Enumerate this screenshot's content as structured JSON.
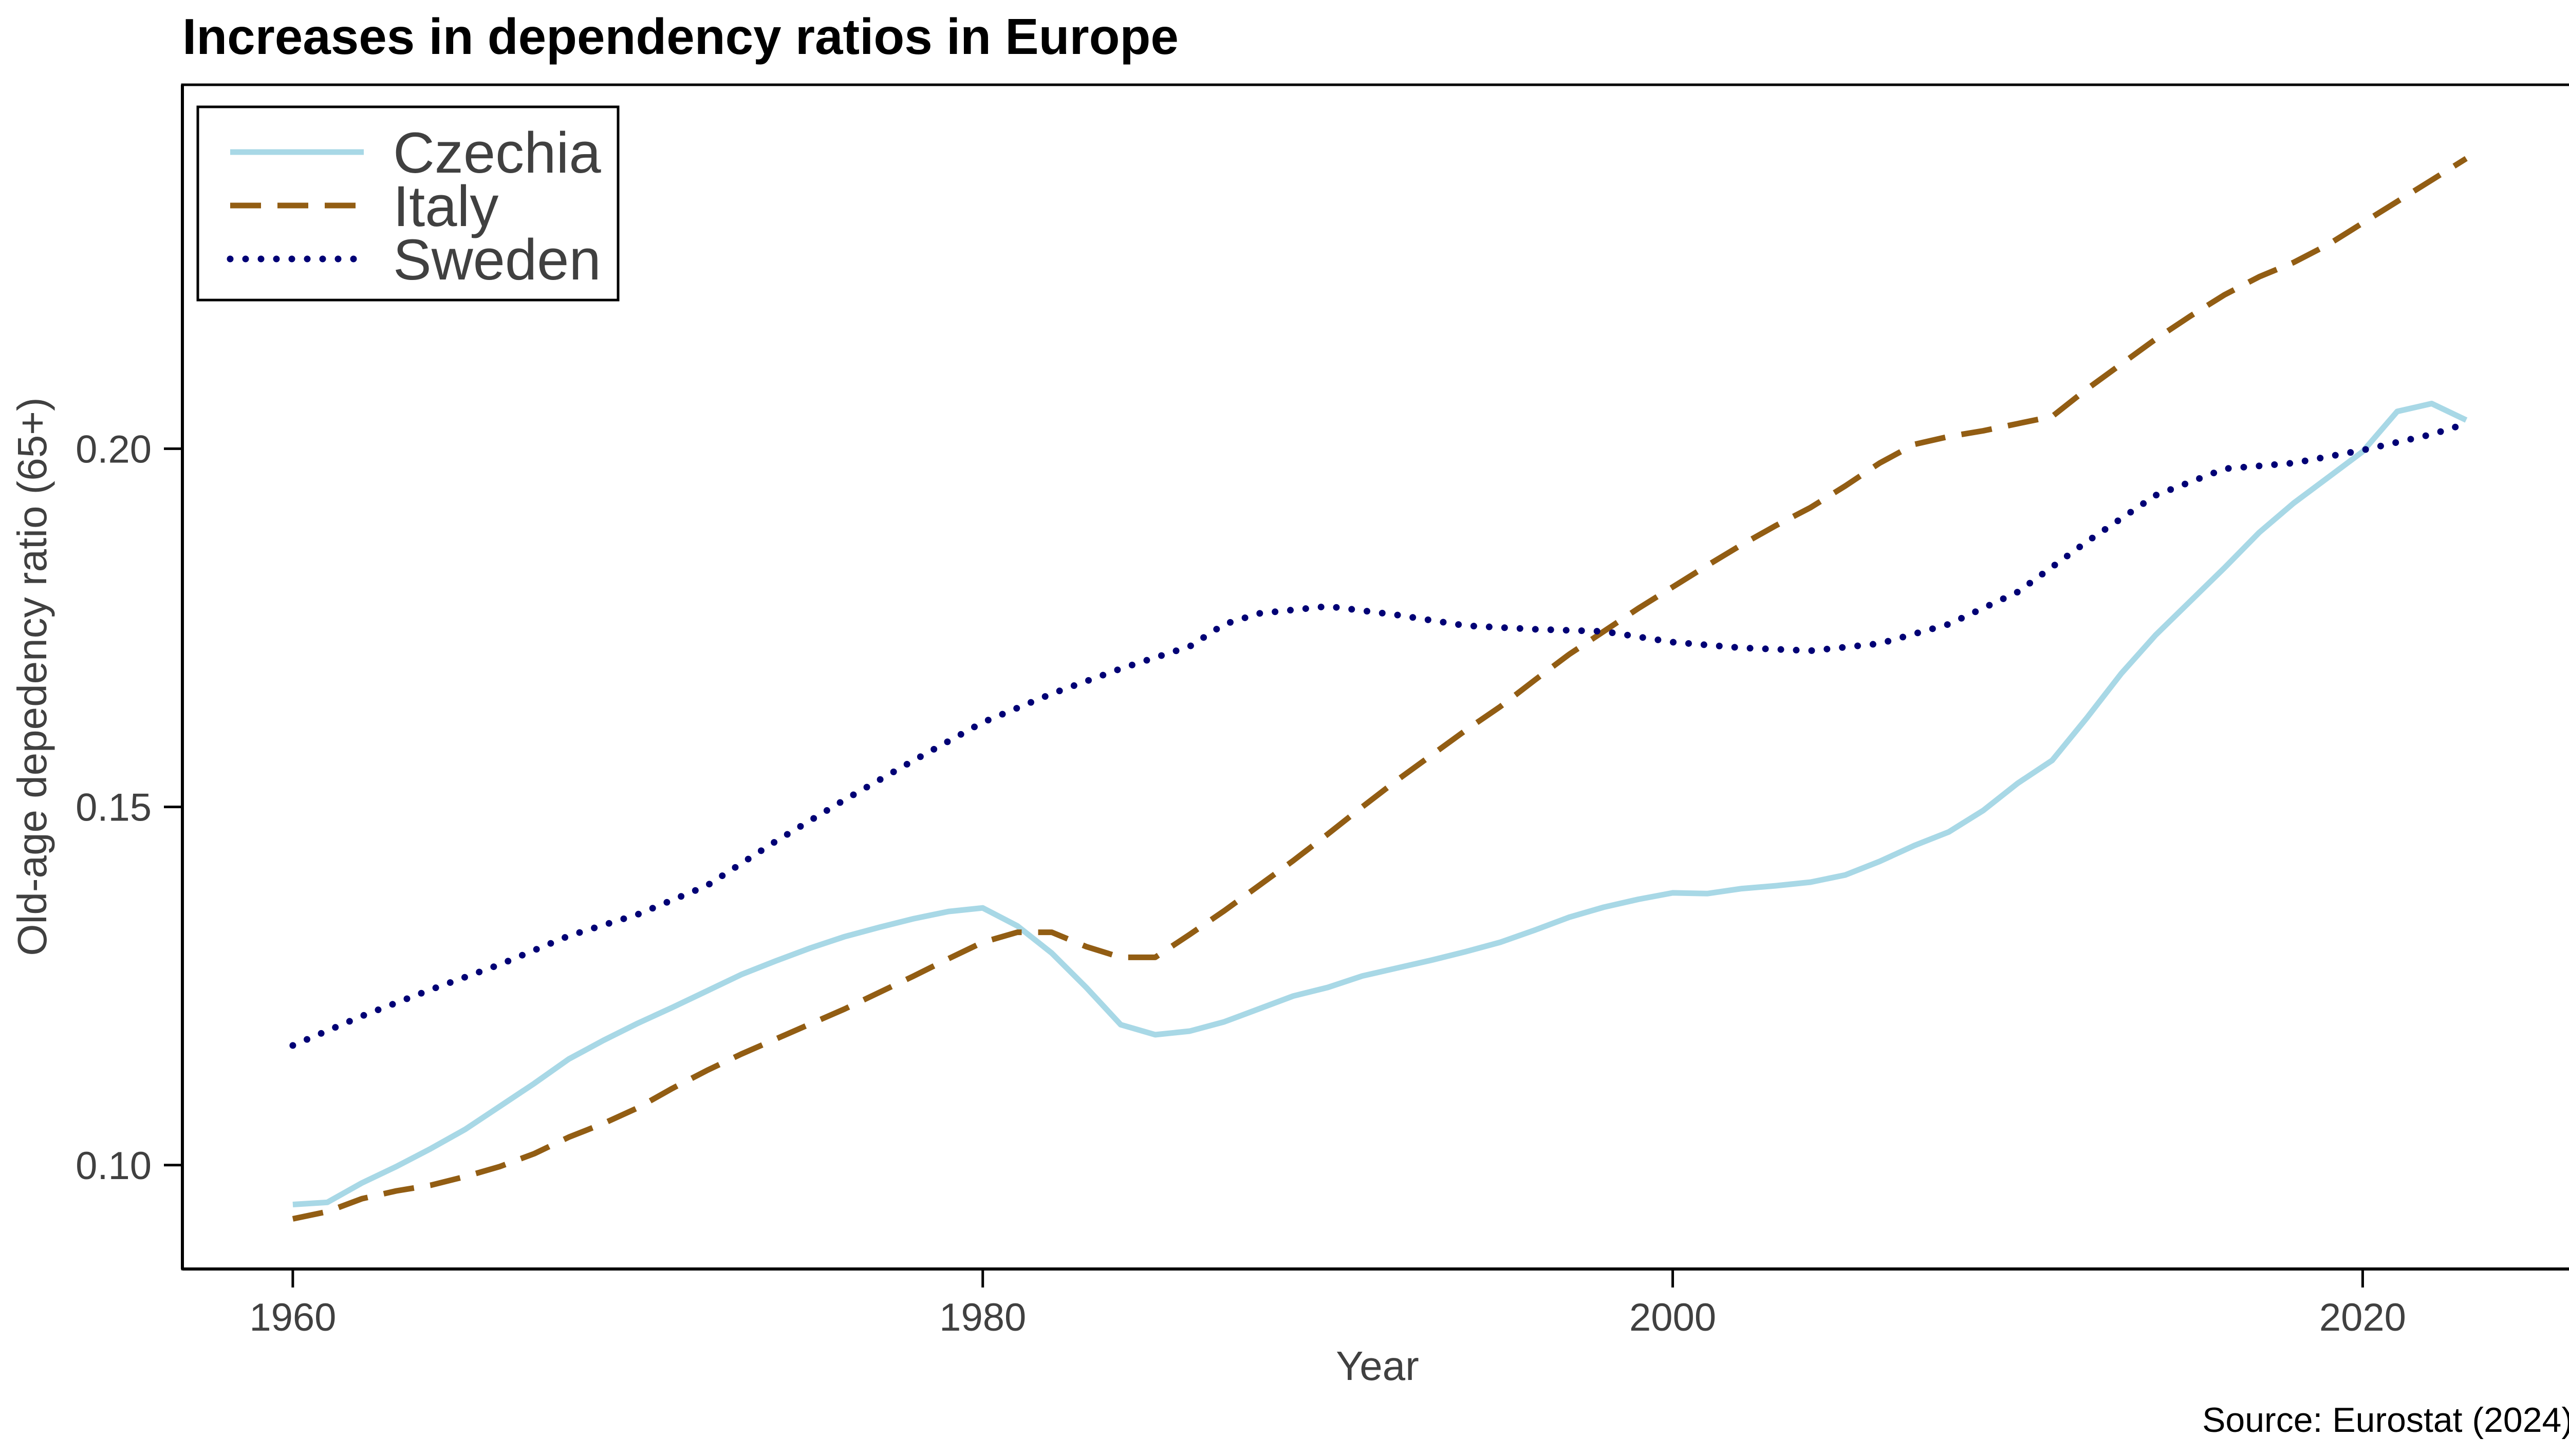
{
  "chart_data": {
    "type": "line",
    "title": "Increases in dependency ratios in Europe",
    "xlabel": "Year",
    "ylabel": "Old-age depedency ratio (65+)",
    "source": "Source: Eurostat (2024)",
    "xlim": [
      1956.8,
      2026.1
    ],
    "ylim": [
      0.0855,
      0.2508
    ],
    "x_ticks": [
      1960,
      1980,
      2000,
      2020
    ],
    "y_ticks": [
      0.1,
      0.15,
      0.2
    ],
    "x_tick_labels": [
      "1960",
      "1980",
      "2000",
      "2020"
    ],
    "y_tick_labels": [
      "0.10",
      "0.15",
      "0.20"
    ],
    "grid": false,
    "legend_position": "top-left",
    "series": [
      {
        "name": "Czechia",
        "color": "#a8d8e6",
        "style": "solid",
        "points": [
          [
            1960,
            0.0945
          ],
          [
            1961,
            0.0948
          ],
          [
            1962,
            0.0975
          ],
          [
            1963,
            0.0998
          ],
          [
            1964,
            0.1023
          ],
          [
            1965,
            0.105
          ],
          [
            1966,
            0.1082
          ],
          [
            1967,
            0.1114
          ],
          [
            1968,
            0.1148
          ],
          [
            1969,
            0.1174
          ],
          [
            1970,
            0.1198
          ],
          [
            1971,
            0.122
          ],
          [
            1972,
            0.1243
          ],
          [
            1973,
            0.1266
          ],
          [
            1974,
            0.1285
          ],
          [
            1975,
            0.1303
          ],
          [
            1976,
            0.1319
          ],
          [
            1977,
            0.1332
          ],
          [
            1978,
            0.1344
          ],
          [
            1979,
            0.1354
          ],
          [
            1980,
            0.1359
          ],
          [
            1981,
            0.1334
          ],
          [
            1982,
            0.1296
          ],
          [
            1983,
            0.1248
          ],
          [
            1984,
            0.1196
          ],
          [
            1985,
            0.1182
          ],
          [
            1986,
            0.1187
          ],
          [
            1987,
            0.12
          ],
          [
            1988,
            0.1218
          ],
          [
            1989,
            0.1236
          ],
          [
            1990,
            0.1248
          ],
          [
            1991,
            0.1264
          ],
          [
            1992,
            0.1275
          ],
          [
            1993,
            0.1286
          ],
          [
            1994,
            0.1298
          ],
          [
            1995,
            0.1311
          ],
          [
            1996,
            0.1328
          ],
          [
            1997,
            0.1346
          ],
          [
            1998,
            0.136
          ],
          [
            1999,
            0.1371
          ],
          [
            2000,
            0.138
          ],
          [
            2001,
            0.1379
          ],
          [
            2002,
            0.1386
          ],
          [
            2003,
            0.139
          ],
          [
            2004,
            0.1395
          ],
          [
            2005,
            0.1405
          ],
          [
            2006,
            0.1424
          ],
          [
            2007,
            0.1446
          ],
          [
            2008,
            0.1465
          ],
          [
            2009,
            0.1495
          ],
          [
            2010,
            0.1533
          ],
          [
            2011,
            0.1565
          ],
          [
            2012,
            0.1624
          ],
          [
            2013,
            0.1686
          ],
          [
            2014,
            0.174
          ],
          [
            2015,
            0.1787
          ],
          [
            2016,
            0.1834
          ],
          [
            2017,
            0.1883
          ],
          [
            2018,
            0.1924
          ],
          [
            2019,
            0.196
          ],
          [
            2020,
            0.1996
          ],
          [
            2021,
            0.2052
          ],
          [
            2022,
            0.2063
          ],
          [
            2023,
            0.204
          ]
        ]
      },
      {
        "name": "Italy",
        "color": "#925d13",
        "style": "dashed",
        "points": [
          [
            1960,
            0.0925
          ],
          [
            1961,
            0.0935
          ],
          [
            1962,
            0.0953
          ],
          [
            1963,
            0.0964
          ],
          [
            1964,
            0.0972
          ],
          [
            1965,
            0.0984
          ],
          [
            1966,
            0.0998
          ],
          [
            1967,
            0.1016
          ],
          [
            1968,
            0.1039
          ],
          [
            1969,
            0.1058
          ],
          [
            1970,
            0.108
          ],
          [
            1971,
            0.1107
          ],
          [
            1972,
            0.1132
          ],
          [
            1973,
            0.1155
          ],
          [
            1974,
            0.1176
          ],
          [
            1975,
            0.1197
          ],
          [
            1976,
            0.1218
          ],
          [
            1977,
            0.1241
          ],
          [
            1978,
            0.1264
          ],
          [
            1979,
            0.1288
          ],
          [
            1980,
            0.1311
          ],
          [
            1981,
            0.1325
          ],
          [
            1982,
            0.1325
          ],
          [
            1983,
            0.1305
          ],
          [
            1984,
            0.129
          ],
          [
            1985,
            0.129
          ],
          [
            1986,
            0.1322
          ],
          [
            1987,
            0.1355
          ],
          [
            1988,
            0.139
          ],
          [
            1989,
            0.1425
          ],
          [
            1990,
            0.1462
          ],
          [
            1991,
            0.15
          ],
          [
            1992,
            0.1537
          ],
          [
            1993,
            0.1572
          ],
          [
            1994,
            0.1607
          ],
          [
            1995,
            0.164
          ],
          [
            1996,
            0.1677
          ],
          [
            1997,
            0.1713
          ],
          [
            1998,
            0.1745
          ],
          [
            1999,
            0.1777
          ],
          [
            2000,
            0.1807
          ],
          [
            2001,
            0.1837
          ],
          [
            2002,
            0.1866
          ],
          [
            2003,
            0.1893
          ],
          [
            2004,
            0.1918
          ],
          [
            2005,
            0.1948
          ],
          [
            2006,
            0.198
          ],
          [
            2007,
            0.2006
          ],
          [
            2008,
            0.2017
          ],
          [
            2009,
            0.2025
          ],
          [
            2010,
            0.2035
          ],
          [
            2011,
            0.2045
          ],
          [
            2012,
            0.2083
          ],
          [
            2013,
            0.2118
          ],
          [
            2014,
            0.2153
          ],
          [
            2015,
            0.2185
          ],
          [
            2016,
            0.2215
          ],
          [
            2017,
            0.224
          ],
          [
            2018,
            0.226
          ],
          [
            2019,
            0.2285
          ],
          [
            2020,
            0.2315
          ],
          [
            2021,
            0.2345
          ],
          [
            2022,
            0.2375
          ],
          [
            2023,
            0.2405
          ]
        ]
      },
      {
        "name": "Sweden",
        "color": "#000075",
        "style": "dotted",
        "points": [
          [
            1960,
            0.1167
          ],
          [
            1962,
            0.1208
          ],
          [
            1964,
            0.1245
          ],
          [
            1966,
            0.128
          ],
          [
            1968,
            0.132
          ],
          [
            1970,
            0.135
          ],
          [
            1972,
            0.139
          ],
          [
            1974,
            0.1452
          ],
          [
            1976,
            0.151
          ],
          [
            1978,
            0.1565
          ],
          [
            1980,
            0.1618
          ],
          [
            1982,
            0.1658
          ],
          [
            1984,
            0.1693
          ],
          [
            1986,
            0.1724
          ],
          [
            1987,
            0.1755
          ],
          [
            1988,
            0.177
          ],
          [
            1990,
            0.178
          ],
          [
            1992,
            0.1768
          ],
          [
            1994,
            0.1753
          ],
          [
            1996,
            0.1748
          ],
          [
            1998,
            0.1745
          ],
          [
            2000,
            0.173
          ],
          [
            2002,
            0.1722
          ],
          [
            2004,
            0.1718
          ],
          [
            2006,
            0.1728
          ],
          [
            2008,
            0.1755
          ],
          [
            2010,
            0.18
          ],
          [
            2012,
            0.187
          ],
          [
            2014,
            0.1935
          ],
          [
            2016,
            0.1972
          ],
          [
            2018,
            0.198
          ],
          [
            2020,
            0.1998
          ],
          [
            2022,
            0.202
          ],
          [
            2023,
            0.2035
          ]
        ]
      }
    ]
  }
}
